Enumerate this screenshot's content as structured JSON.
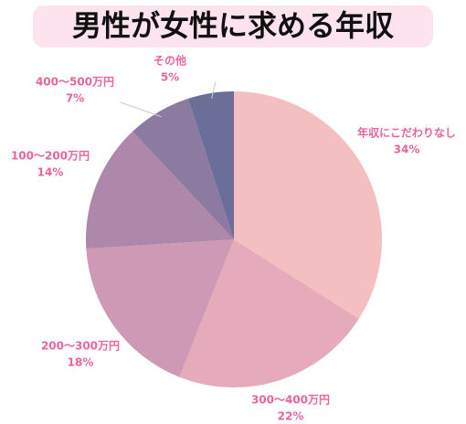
{
  "chart_data": {
    "type": "pie",
    "title": "男性が女性に求める年収",
    "categories": [
      "年収にこだわりなし",
      "300〜400万円",
      "200〜300万円",
      "100〜200万円",
      "400〜500万円",
      "その他"
    ],
    "values": [
      34,
      22,
      18,
      14,
      7,
      5
    ],
    "value_labels": [
      "34%",
      "22%",
      "18%",
      "14%",
      "7%",
      "5%"
    ],
    "colors": [
      "#f4bfc0",
      "#e5abbb",
      "#cd99b5",
      "#ae88aa",
      "#8d7aa0",
      "#6b6e98"
    ]
  }
}
